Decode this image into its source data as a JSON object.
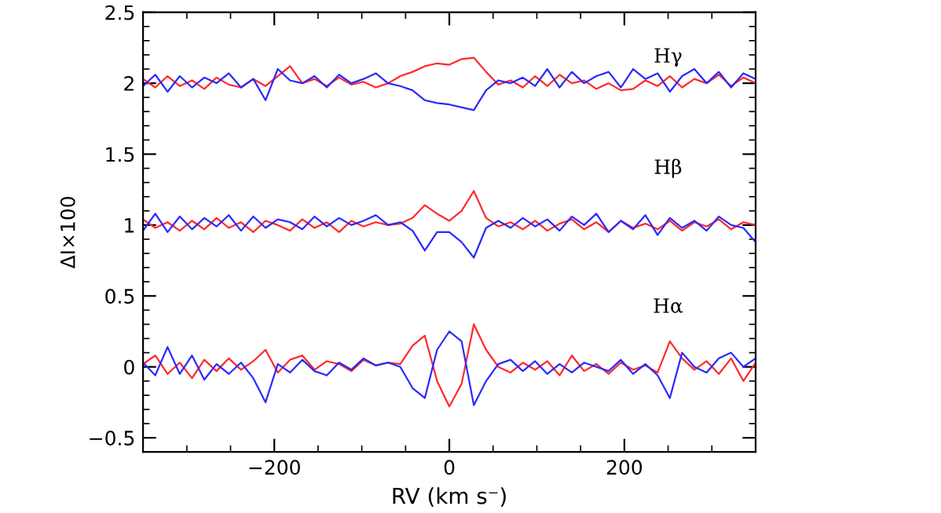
{
  "chart_data": {
    "type": "line",
    "xlabel": "RV (km s⁻)",
    "ylabel": "ΔI×100",
    "xlim": [
      -350,
      350
    ],
    "ylim": [
      -0.6,
      2.5
    ],
    "xticks": [
      {
        "value": -200,
        "label": "−200"
      },
      0,
      200
    ],
    "yticks": [
      {
        "value": -0.5,
        "label": "−0.5"
      },
      0,
      0.5,
      1,
      1.5,
      2,
      2.5
    ],
    "marker": "none",
    "line_style": "solid",
    "x": [
      -350,
      -336,
      -322,
      -308,
      -294,
      -280,
      -266,
      -252,
      -238,
      -224,
      -210,
      -196,
      -182,
      -168,
      -154,
      -140,
      -126,
      -112,
      -98,
      -84,
      -70,
      -56,
      -42,
      -28,
      -14,
      0,
      14,
      28,
      42,
      56,
      70,
      84,
      98,
      112,
      126,
      140,
      154,
      168,
      182,
      196,
      210,
      224,
      238,
      252,
      266,
      280,
      294,
      308,
      322,
      336,
      350
    ],
    "annotations": [
      "Hγ",
      "Hβ",
      "Hα"
    ],
    "series": [
      {
        "color": "#ff2a2a",
        "values": [
          0.02,
          0.08,
          -0.05,
          0.03,
          -0.08,
          0.05,
          -0.03,
          0.06,
          -0.02,
          0.04,
          0.12,
          -0.04,
          0.05,
          0.08,
          -0.02,
          0.04,
          0.02,
          -0.03,
          0.05,
          0.01,
          0.03,
          0.02,
          0.15,
          0.22,
          -0.1,
          -0.28,
          -0.12,
          0.3,
          0.12,
          0.0,
          -0.04,
          0.03,
          -0.02,
          0.04,
          -0.06,
          0.08,
          -0.03,
          0.02,
          -0.05,
          0.03,
          -0.02,
          0.01,
          -0.04,
          0.18,
          0.06,
          -0.02,
          0.04,
          -0.05,
          0.06,
          -0.1,
          0.03
        ]
      },
      {
        "color": "#2a2aff",
        "values": [
          0.03,
          -0.06,
          0.14,
          -0.05,
          0.08,
          -0.09,
          0.02,
          -0.05,
          0.03,
          -0.08,
          -0.25,
          0.02,
          -0.04,
          0.05,
          -0.03,
          -0.06,
          0.03,
          -0.02,
          0.06,
          0.01,
          0.03,
          0.0,
          -0.15,
          -0.22,
          0.12,
          0.25,
          0.18,
          -0.27,
          -0.1,
          0.02,
          0.05,
          -0.03,
          0.04,
          -0.05,
          0.02,
          -0.04,
          0.03,
          0.0,
          -0.03,
          0.05,
          -0.05,
          0.02,
          -0.06,
          -0.22,
          0.1,
          0.0,
          -0.04,
          0.06,
          0.1,
          0.0,
          0.06
        ]
      },
      {
        "color": "#ff2a2a",
        "values": [
          1.04,
          0.98,
          1.02,
          0.96,
          1.03,
          0.97,
          1.05,
          0.98,
          1.02,
          0.95,
          1.03,
          1.0,
          0.96,
          1.04,
          0.98,
          1.02,
          0.95,
          1.03,
          0.99,
          1.02,
          1.0,
          1.01,
          1.05,
          1.14,
          1.08,
          1.03,
          1.1,
          1.24,
          1.05,
          0.99,
          1.02,
          0.97,
          1.03,
          0.96,
          1.01,
          1.04,
          0.97,
          1.02,
          0.95,
          1.03,
          0.98,
          1.01,
          0.97,
          1.03,
          0.96,
          1.02,
          0.99,
          1.04,
          0.97,
          1.02,
          1.0
        ]
      },
      {
        "color": "#2a2aff",
        "values": [
          0.96,
          1.08,
          0.95,
          1.06,
          0.97,
          1.05,
          0.99,
          1.07,
          0.96,
          1.06,
          0.98,
          1.04,
          1.02,
          0.97,
          1.06,
          0.99,
          1.05,
          1.0,
          1.03,
          1.07,
          1.0,
          1.02,
          0.96,
          0.82,
          0.95,
          0.95,
          0.88,
          0.77,
          0.98,
          1.03,
          0.98,
          1.05,
          0.99,
          1.04,
          0.96,
          1.06,
          1.0,
          1.08,
          0.95,
          1.03,
          0.97,
          1.07,
          0.93,
          1.05,
          0.98,
          1.03,
          0.96,
          1.06,
          1.0,
          0.98,
          0.88
        ]
      },
      {
        "color": "#ff2a2a",
        "values": [
          2.03,
          1.97,
          2.05,
          1.98,
          2.02,
          1.96,
          2.04,
          1.99,
          1.97,
          2.03,
          1.98,
          2.05,
          2.12,
          2.0,
          2.03,
          1.98,
          2.04,
          1.99,
          2.01,
          1.97,
          2.0,
          2.05,
          2.08,
          2.12,
          2.14,
          2.13,
          2.17,
          2.18,
          2.08,
          1.99,
          2.02,
          1.97,
          2.05,
          1.98,
          2.06,
          2.0,
          2.02,
          1.96,
          2.0,
          1.95,
          1.96,
          2.02,
          1.98,
          2.05,
          1.97,
          2.03,
          2.0,
          2.06,
          1.98,
          2.04,
          2.0
        ]
      },
      {
        "color": "#2a2aff",
        "values": [
          1.98,
          2.06,
          1.94,
          2.05,
          1.97,
          2.04,
          2.0,
          2.07,
          1.97,
          2.03,
          1.88,
          2.1,
          2.02,
          2.0,
          2.05,
          1.97,
          2.06,
          2.0,
          2.03,
          2.07,
          2.0,
          1.98,
          1.95,
          1.88,
          1.86,
          1.85,
          1.83,
          1.81,
          1.95,
          2.02,
          2.0,
          2.04,
          1.98,
          2.1,
          1.97,
          2.08,
          2.0,
          2.05,
          2.08,
          1.97,
          2.1,
          2.03,
          2.07,
          1.94,
          2.05,
          2.1,
          2.0,
          2.08,
          1.97,
          2.07,
          2.03
        ]
      }
    ]
  }
}
